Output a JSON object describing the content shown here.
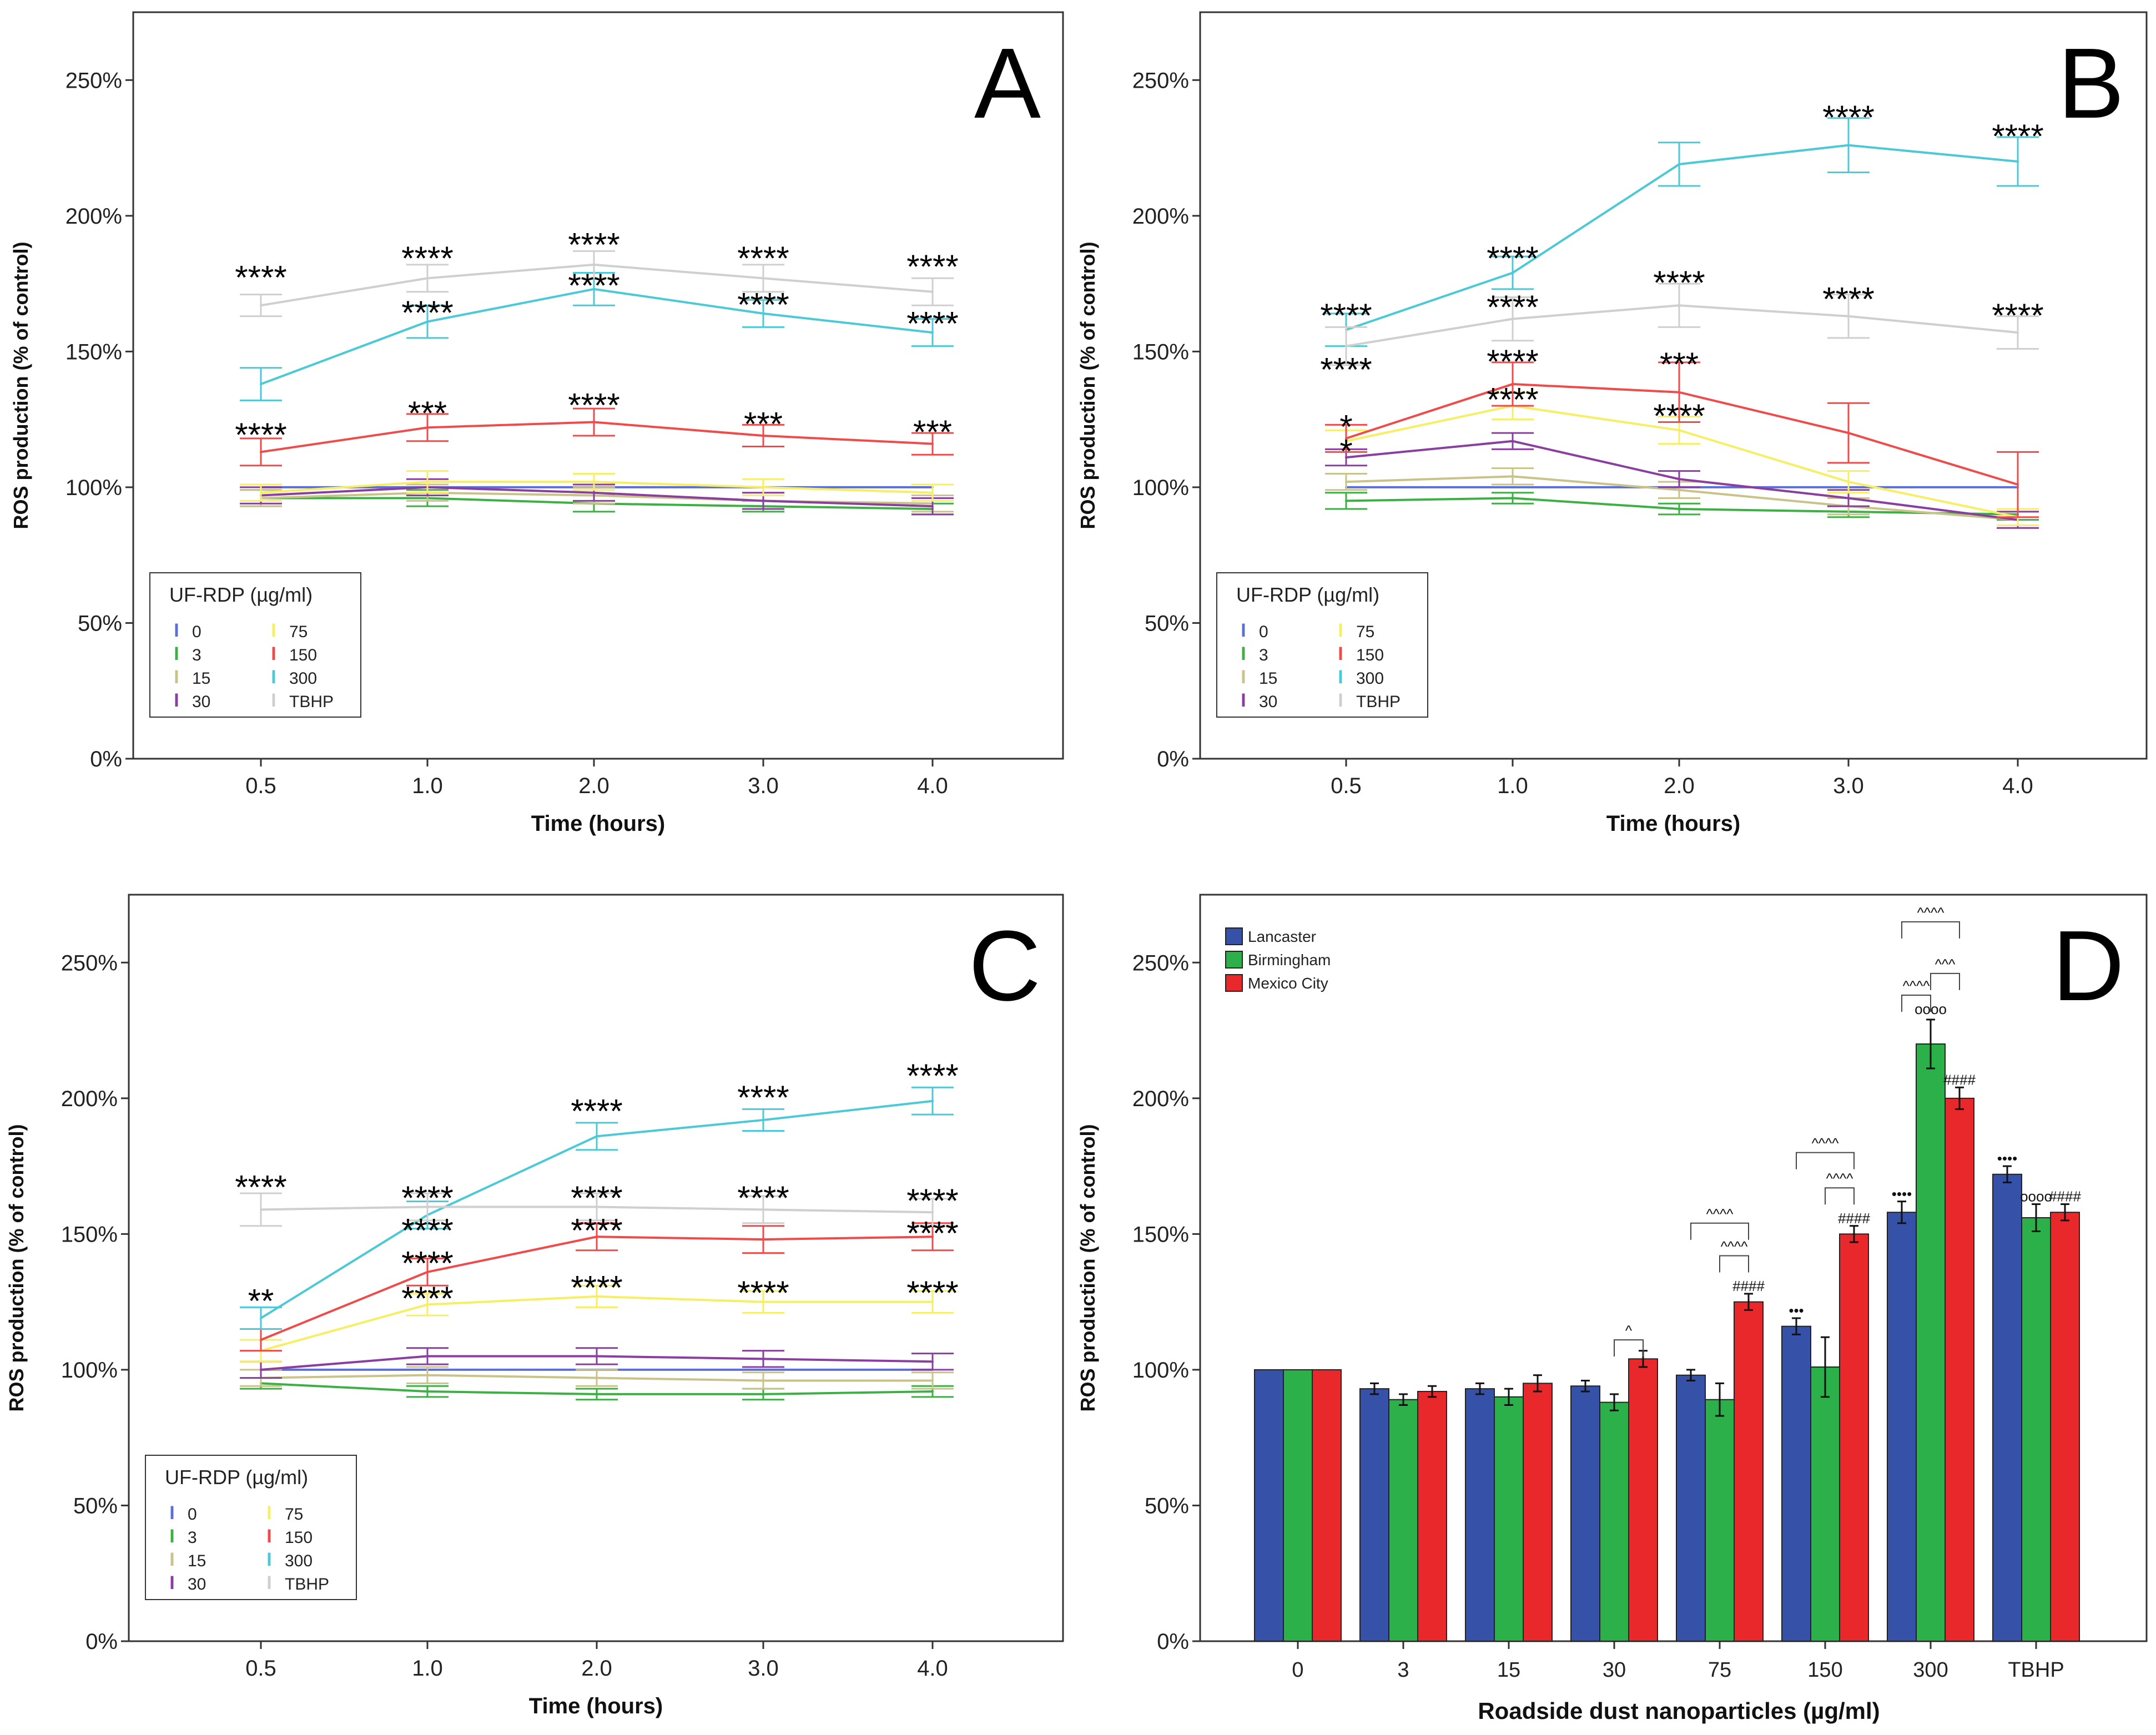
{
  "colors": {
    "c0": "#5b6fd6",
    "c3": "#3cb043",
    "c15": "#c9c389",
    "c30": "#8a3fa0",
    "c75": "#f7ef63",
    "c150": "#ef4b4b",
    "c300": "#4cc9d6",
    "ctbhp": "#cfcfcf",
    "lancaster": "#3652a8",
    "birmingham": "#2bb04a",
    "mexico": "#e8282b"
  },
  "chart_data": [
    {
      "id": "A",
      "type": "line",
      "panel_label": "A",
      "xlabel": "Time (hours)",
      "ylabel": "ROS production (% of control)",
      "x": [
        "0.5",
        "1.0",
        "2.0",
        "3.0",
        "4.0"
      ],
      "yticks": [
        "0%",
        "50%",
        "100%",
        "150%",
        "200%",
        "250%"
      ],
      "ylim": [
        0,
        275
      ],
      "legend": {
        "title": "UF-RDP (µg/ml)",
        "position": "bottom-left",
        "entries": [
          "0",
          "3",
          "15",
          "30",
          "75",
          "150",
          "300",
          "TBHP"
        ]
      },
      "series": [
        {
          "name": "0",
          "color_key": "c0",
          "values": [
            100,
            100,
            100,
            100,
            100
          ],
          "err": [
            0,
            0,
            0,
            0,
            0
          ]
        },
        {
          "name": "3",
          "color_key": "c3",
          "values": [
            96,
            96,
            94,
            93,
            92
          ],
          "err": [
            3,
            3,
            3,
            2,
            2
          ]
        },
        {
          "name": "15",
          "color_key": "c15",
          "values": [
            96,
            98,
            97,
            95,
            94
          ],
          "err": [
            3,
            3,
            3,
            3,
            3
          ]
        },
        {
          "name": "30",
          "color_key": "c30",
          "values": [
            97,
            100,
            98,
            95,
            93
          ],
          "err": [
            3,
            3,
            3,
            3,
            3
          ]
        },
        {
          "name": "75",
          "color_key": "c75",
          "values": [
            98,
            102,
            102,
            100,
            98
          ],
          "err": [
            3,
            4,
            3,
            3,
            3
          ]
        },
        {
          "name": "150",
          "color_key": "c150",
          "values": [
            113,
            122,
            124,
            119,
            116
          ],
          "err": [
            5,
            5,
            5,
            4,
            4
          ]
        },
        {
          "name": "300",
          "color_key": "c300",
          "values": [
            138,
            161,
            173,
            164,
            157
          ],
          "err": [
            6,
            6,
            6,
            5,
            5
          ]
        },
        {
          "name": "TBHP",
          "color_key": "ctbhp",
          "values": [
            167,
            177,
            182,
            177,
            172
          ],
          "err": [
            4,
            5,
            5,
            5,
            5
          ]
        }
      ],
      "annotations": [
        {
          "x": 0,
          "y": 178,
          "text": "****"
        },
        {
          "x": 1,
          "y": 185,
          "text": "****"
        },
        {
          "x": 2,
          "y": 190,
          "text": "****"
        },
        {
          "x": 3,
          "y": 185,
          "text": "****"
        },
        {
          "x": 4,
          "y": 182,
          "text": "****"
        },
        {
          "x": 1,
          "y": 165,
          "text": "****"
        },
        {
          "x": 2,
          "y": 175,
          "text": "****"
        },
        {
          "x": 3,
          "y": 168,
          "text": "****"
        },
        {
          "x": 4,
          "y": 161,
          "text": "****"
        },
        {
          "x": 0,
          "y": 120,
          "text": "****"
        },
        {
          "x": 1,
          "y": 128,
          "text": "***"
        },
        {
          "x": 2,
          "y": 131,
          "text": "****"
        },
        {
          "x": 3,
          "y": 124,
          "text": "***"
        },
        {
          "x": 4,
          "y": 121,
          "text": "***"
        }
      ]
    },
    {
      "id": "B",
      "type": "line",
      "panel_label": "B",
      "xlabel": "Time (hours)",
      "ylabel": "ROS production (% of control)",
      "x": [
        "0.5",
        "1.0",
        "2.0",
        "3.0",
        "4.0"
      ],
      "yticks": [
        "0%",
        "50%",
        "100%",
        "150%",
        "200%",
        "250%"
      ],
      "ylim": [
        0,
        275
      ],
      "legend": {
        "title": "UF-RDP (µg/ml)",
        "position": "bottom-left",
        "entries": [
          "0",
          "3",
          "15",
          "30",
          "75",
          "150",
          "300",
          "TBHP"
        ]
      },
      "series": [
        {
          "name": "0",
          "color_key": "c0",
          "values": [
            100,
            100,
            100,
            100,
            100
          ],
          "err": [
            0,
            0,
            0,
            0,
            0
          ]
        },
        {
          "name": "3",
          "color_key": "c3",
          "values": [
            95,
            96,
            92,
            91,
            90
          ],
          "err": [
            3,
            2,
            2,
            2,
            2
          ]
        },
        {
          "name": "15",
          "color_key": "c15",
          "values": [
            102,
            104,
            99,
            93,
            88
          ],
          "err": [
            3,
            3,
            3,
            3,
            3
          ]
        },
        {
          "name": "30",
          "color_key": "c30",
          "values": [
            111,
            117,
            103,
            96,
            88
          ],
          "err": [
            3,
            3,
            3,
            3,
            3
          ]
        },
        {
          "name": "75",
          "color_key": "c75",
          "values": [
            117,
            130,
            121,
            102,
            89
          ],
          "err": [
            4,
            5,
            5,
            4,
            3
          ]
        },
        {
          "name": "150",
          "color_key": "c150",
          "values": [
            118,
            138,
            135,
            120,
            101
          ],
          "err": [
            5,
            8,
            11,
            11,
            12
          ]
        },
        {
          "name": "300",
          "color_key": "c300",
          "values": [
            158,
            179,
            219,
            226,
            220
          ],
          "err": [
            6,
            6,
            8,
            10,
            9
          ]
        },
        {
          "name": "TBHP",
          "color_key": "ctbhp",
          "values": [
            152,
            162,
            167,
            163,
            157
          ],
          "err": [
            7,
            8,
            8,
            8,
            6
          ]
        }
      ],
      "annotations": [
        {
          "x": 0,
          "y": 164,
          "text": "****"
        },
        {
          "x": 1,
          "y": 185,
          "text": "****"
        },
        {
          "x": 2,
          "y": 127,
          "text": "****"
        },
        {
          "x": 3,
          "y": 237,
          "text": "****"
        },
        {
          "x": 4,
          "y": 230,
          "text": "****"
        },
        {
          "x": 1,
          "y": 167,
          "text": "****"
        },
        {
          "x": 2,
          "y": 176,
          "text": "****"
        },
        {
          "x": 3,
          "y": 170,
          "text": "****"
        },
        {
          "x": 4,
          "y": 164,
          "text": "****"
        },
        {
          "x": 0,
          "y": 144,
          "text": "****"
        },
        {
          "x": 1,
          "y": 147,
          "text": "****"
        },
        {
          "x": 2,
          "y": 146,
          "text": "***"
        },
        {
          "x": 1,
          "y": 133,
          "text": "****"
        },
        {
          "x": 0,
          "y": 123,
          "text": "*"
        },
        {
          "x": 0,
          "y": 114,
          "text": "*"
        }
      ]
    },
    {
      "id": "C",
      "type": "line",
      "panel_label": "C",
      "xlabel": "Time (hours)",
      "ylabel": "ROS production (% of control)",
      "x": [
        "0.5",
        "1.0",
        "2.0",
        "3.0",
        "4.0"
      ],
      "yticks": [
        "0%",
        "50%",
        "100%",
        "150%",
        "200%",
        "250%"
      ],
      "ylim": [
        0,
        275
      ],
      "legend": {
        "title": "UF-RDP (µg/ml)",
        "position": "bottom-left",
        "entries": [
          "0",
          "3",
          "15",
          "30",
          "75",
          "150",
          "300",
          "TBHP"
        ]
      },
      "series": [
        {
          "name": "0",
          "color_key": "c0",
          "values": [
            100,
            100,
            100,
            100,
            100
          ],
          "err": [
            0,
            0,
            0,
            0,
            0
          ]
        },
        {
          "name": "3",
          "color_key": "c3",
          "values": [
            95,
            92,
            91,
            91,
            92
          ],
          "err": [
            2,
            2,
            2,
            2,
            2
          ]
        },
        {
          "name": "15",
          "color_key": "c15",
          "values": [
            97,
            98,
            97,
            96,
            96
          ],
          "err": [
            3,
            3,
            3,
            3,
            3
          ]
        },
        {
          "name": "30",
          "color_key": "c30",
          "values": [
            100,
            105,
            105,
            104,
            103
          ],
          "err": [
            3,
            3,
            3,
            3,
            3
          ]
        },
        {
          "name": "75",
          "color_key": "c75",
          "values": [
            107,
            124,
            127,
            125,
            125
          ],
          "err": [
            4,
            4,
            4,
            4,
            4
          ]
        },
        {
          "name": "150",
          "color_key": "c150",
          "values": [
            111,
            136,
            149,
            148,
            149
          ],
          "err": [
            4,
            5,
            5,
            5,
            5
          ]
        },
        {
          "name": "300",
          "color_key": "c300",
          "values": [
            119,
            157,
            186,
            192,
            199
          ],
          "err": [
            4,
            5,
            5,
            4,
            5
          ]
        },
        {
          "name": "TBHP",
          "color_key": "ctbhp",
          "values": [
            159,
            160,
            160,
            159,
            158
          ],
          "err": [
            6,
            5,
            5,
            5,
            5
          ]
        }
      ],
      "annotations": [
        {
          "x": 0,
          "y": 168,
          "text": "****"
        },
        {
          "x": 2,
          "y": 196,
          "text": "****"
        },
        {
          "x": 3,
          "y": 201,
          "text": "****"
        },
        {
          "x": 4,
          "y": 209,
          "text": "****"
        },
        {
          "x": 1,
          "y": 164,
          "text": "****"
        },
        {
          "x": 2,
          "y": 164,
          "text": "****"
        },
        {
          "x": 3,
          "y": 164,
          "text": "****"
        },
        {
          "x": 4,
          "y": 163,
          "text": "****"
        },
        {
          "x": 1,
          "y": 152,
          "text": "****"
        },
        {
          "x": 2,
          "y": 152,
          "text": "****"
        },
        {
          "x": 4,
          "y": 151,
          "text": "****"
        },
        {
          "x": 1,
          "y": 140,
          "text": "****"
        },
        {
          "x": 0,
          "y": 126,
          "text": "**"
        },
        {
          "x": 1,
          "y": 127,
          "text": "****"
        },
        {
          "x": 2,
          "y": 131,
          "text": "****"
        },
        {
          "x": 3,
          "y": 129,
          "text": "****"
        },
        {
          "x": 4,
          "y": 129,
          "text": "****"
        }
      ]
    },
    {
      "id": "D",
      "type": "bar",
      "panel_label": "D",
      "xlabel": "Roadside dust nanoparticles (µg/ml)",
      "ylabel": "ROS production (% of control)",
      "categories": [
        "0",
        "3",
        "15",
        "30",
        "75",
        "150",
        "300",
        "TBHP"
      ],
      "yticks": [
        "0%",
        "50%",
        "100%",
        "150%",
        "200%",
        "250%"
      ],
      "ylim": [
        0,
        275
      ],
      "legend": {
        "position": "top-left",
        "entries": [
          "Lancaster",
          "Birmingham",
          "Mexico City"
        ]
      },
      "series": [
        {
          "name": "Lancaster",
          "color_key": "lancaster",
          "values": [
            100,
            93,
            93,
            94,
            98,
            116,
            158,
            172
          ],
          "err": [
            0,
            2,
            2,
            2,
            2,
            3,
            4,
            3
          ]
        },
        {
          "name": "Birmingham",
          "color_key": "birmingham",
          "values": [
            100,
            89,
            90,
            88,
            89,
            101,
            220,
            156
          ],
          "err": [
            0,
            2,
            3,
            3,
            6,
            11,
            9,
            5
          ]
        },
        {
          "name": "Mexico City",
          "color_key": "mexico",
          "values": [
            100,
            92,
            95,
            104,
            125,
            150,
            200,
            158
          ],
          "err": [
            0,
            2,
            3,
            3,
            3,
            3,
            4,
            3
          ]
        }
      ],
      "symbols": [
        {
          "cat": 5,
          "series": 0,
          "y": 120,
          "text": "•••"
        },
        {
          "cat": 6,
          "series": 0,
          "y": 163,
          "text": "••••"
        },
        {
          "cat": 7,
          "series": 0,
          "y": 176,
          "text": "••••"
        },
        {
          "cat": 6,
          "series": 1,
          "y": 231,
          "text": "oooo"
        },
        {
          "cat": 7,
          "series": 1,
          "y": 162,
          "text": "oooo"
        },
        {
          "cat": 4,
          "series": 2,
          "y": 129,
          "text": "####"
        },
        {
          "cat": 5,
          "series": 2,
          "y": 154,
          "text": "####"
        },
        {
          "cat": 6,
          "series": 2,
          "y": 205,
          "text": "####"
        },
        {
          "cat": 7,
          "series": 2,
          "y": 162,
          "text": "####"
        }
      ],
      "brackets": [
        {
          "cat": 3,
          "from": 1,
          "to": 2,
          "y": 111,
          "text": "^"
        },
        {
          "cat": 4,
          "from": 0,
          "to": 2,
          "y": 154,
          "text": "^^^^"
        },
        {
          "cat": 4,
          "from": 1,
          "to": 2,
          "y": 142,
          "text": "^^^^"
        },
        {
          "cat": 5,
          "from": 0,
          "to": 2,
          "y": 180,
          "text": "^^^^"
        },
        {
          "cat": 5,
          "from": 1,
          "to": 2,
          "y": 167,
          "text": "^^^^"
        },
        {
          "cat": 6,
          "from": 0,
          "to": 2,
          "y": 265,
          "text": "^^^^"
        },
        {
          "cat": 6,
          "from": 0,
          "to": 1,
          "y": 238,
          "text": "^^^^"
        },
        {
          "cat": 6,
          "from": 1,
          "to": 2,
          "y": 246,
          "text": "^^^"
        }
      ]
    }
  ]
}
